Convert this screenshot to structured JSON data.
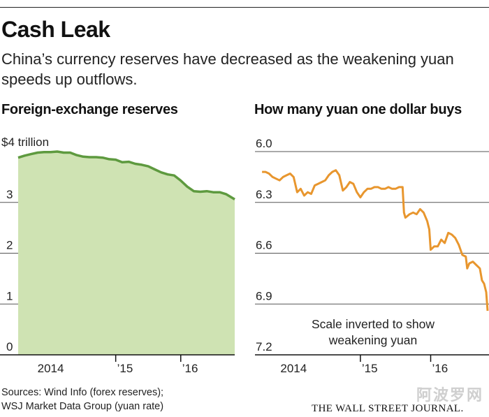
{
  "header": {
    "title": "Cash Leak",
    "subtitle": "China’s currency reserves have decreased as the weakening yuan speeds up outflows."
  },
  "chart_data": [
    {
      "type": "area",
      "title": "Foreign-exchange reserves",
      "unit_label": "$4 trillion",
      "ylim": [
        0,
        4
      ],
      "ytick_values": [
        0,
        1,
        2,
        3
      ],
      "ytick_labels": [
        "0",
        "1",
        "2",
        "3"
      ],
      "xlim": [
        2013.5,
        2016.83
      ],
      "xtick_values": [
        2014,
        2015,
        2016
      ],
      "xtick_labels": [
        "2014",
        "’15",
        "’16"
      ],
      "x": [
        2013.5,
        2013.6,
        2013.7,
        2013.8,
        2013.9,
        2014.0,
        2014.1,
        2014.2,
        2014.3,
        2014.4,
        2014.5,
        2014.6,
        2014.7,
        2014.8,
        2014.9,
        2015.0,
        2015.1,
        2015.2,
        2015.3,
        2015.4,
        2015.5,
        2015.6,
        2015.7,
        2015.8,
        2015.9,
        2016.0,
        2016.1,
        2016.2,
        2016.3,
        2016.4,
        2016.5,
        2016.6,
        2016.7,
        2016.83
      ],
      "values": [
        3.88,
        3.92,
        3.95,
        3.98,
        3.99,
        3.99,
        4.0,
        3.98,
        3.98,
        3.93,
        3.9,
        3.89,
        3.89,
        3.88,
        3.85,
        3.84,
        3.79,
        3.8,
        3.76,
        3.74,
        3.71,
        3.65,
        3.59,
        3.55,
        3.53,
        3.43,
        3.31,
        3.22,
        3.21,
        3.22,
        3.2,
        3.2,
        3.16,
        3.06
      ],
      "fill_color": "#cfe3b3",
      "line_color": "#5e9a3f"
    },
    {
      "type": "line",
      "title": "How many yuan one dollar buys",
      "ylim": [
        6.0,
        7.2
      ],
      "inverted_y": true,
      "ytick_values": [
        6.0,
        6.3,
        6.6,
        6.9,
        7.2
      ],
      "ytick_labels": [
        "6.0",
        "6.3",
        "6.6",
        "6.9",
        "7.2"
      ],
      "xlim": [
        2013.5,
        2016.83
      ],
      "xtick_values": [
        2014,
        2015,
        2016
      ],
      "xtick_labels": [
        "2014",
        "’15",
        "’16"
      ],
      "x": [
        2013.6,
        2013.65,
        2013.7,
        2013.75,
        2013.8,
        2013.85,
        2013.9,
        2013.95,
        2014.0,
        2014.05,
        2014.1,
        2014.15,
        2014.2,
        2014.25,
        2014.3,
        2014.35,
        2014.4,
        2014.45,
        2014.5,
        2014.55,
        2014.6,
        2014.65,
        2014.7,
        2014.75,
        2014.8,
        2014.85,
        2014.9,
        2014.95,
        2015.0,
        2015.05,
        2015.1,
        2015.15,
        2015.2,
        2015.25,
        2015.3,
        2015.35,
        2015.4,
        2015.45,
        2015.5,
        2015.55,
        2015.6,
        2015.62,
        2015.64,
        2015.7,
        2015.75,
        2015.8,
        2015.85,
        2015.9,
        2015.95,
        2015.98,
        2016.0,
        2016.05,
        2016.1,
        2016.15,
        2016.2,
        2016.25,
        2016.3,
        2016.35,
        2016.4,
        2016.45,
        2016.5,
        2016.52,
        2016.55,
        2016.6,
        2016.65,
        2016.7,
        2016.73,
        2016.76,
        2016.79,
        2016.81
      ],
      "values": [
        6.12,
        6.12,
        6.13,
        6.15,
        6.16,
        6.17,
        6.15,
        6.14,
        6.13,
        6.15,
        6.24,
        6.22,
        6.26,
        6.24,
        6.25,
        6.2,
        6.19,
        6.18,
        6.17,
        6.14,
        6.12,
        6.11,
        6.14,
        6.23,
        6.21,
        6.18,
        6.19,
        6.24,
        6.27,
        6.24,
        6.22,
        6.22,
        6.21,
        6.21,
        6.22,
        6.22,
        6.21,
        6.22,
        6.22,
        6.21,
        6.21,
        6.36,
        6.39,
        6.37,
        6.36,
        6.37,
        6.34,
        6.36,
        6.41,
        6.46,
        6.58,
        6.56,
        6.56,
        6.52,
        6.54,
        6.48,
        6.49,
        6.51,
        6.55,
        6.61,
        6.62,
        6.69,
        6.66,
        6.65,
        6.67,
        6.69,
        6.76,
        6.78,
        6.83,
        6.94
      ],
      "line_color": "#e8962e",
      "annotation": "Scale inverted to show weakening yuan",
      "annotation_lines": [
        "Scale inverted to show",
        "weakening yuan"
      ]
    }
  ],
  "footer": {
    "sources_line1": "Sources: Wind Info (forex reserves);",
    "sources_line2": "WSJ Market Data Group (yuan rate)",
    "publisher": "THE WALL STREET JOURNAL.",
    "watermark": "阿波罗网"
  }
}
